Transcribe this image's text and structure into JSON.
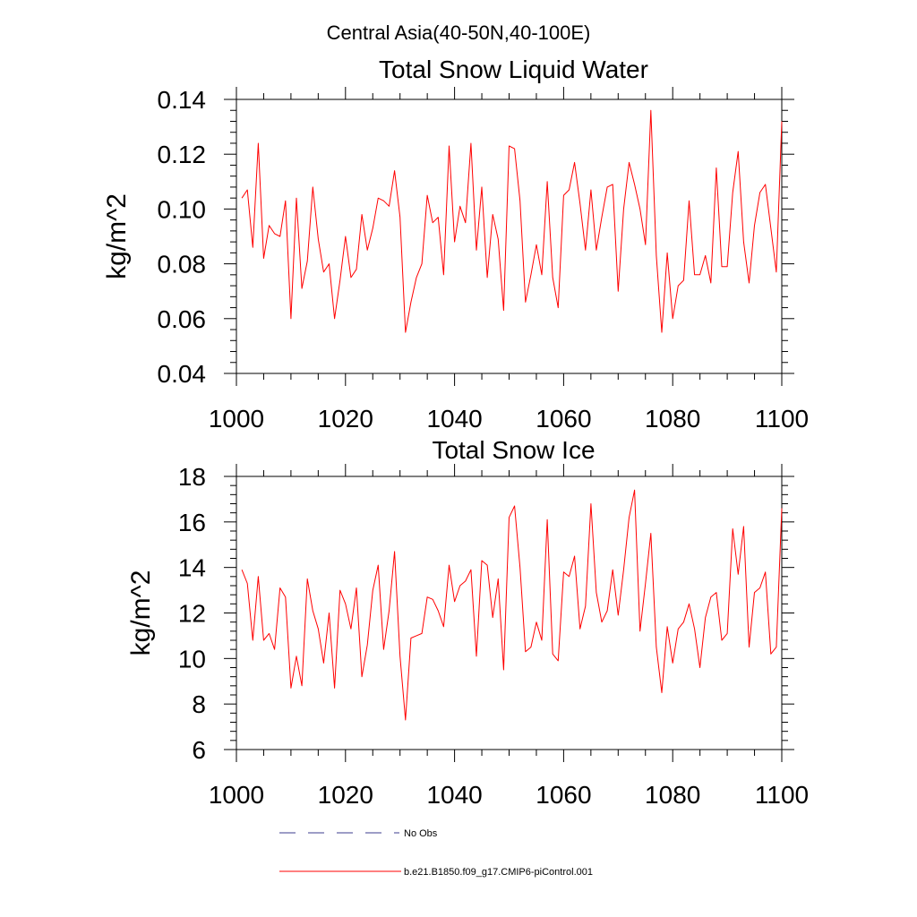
{
  "figure_title": "Central Asia(40-50N,40-100E)",
  "legend": [
    {
      "label": "No Obs",
      "style": "dashed",
      "color": "#3b3b8f"
    },
    {
      "label": "b.e21.B1850.f09_g17.CMIP6-piControl.001",
      "style": "solid",
      "color": "#ff0000"
    }
  ],
  "chart_data": [
    {
      "type": "line",
      "title": "Total Snow Liquid Water",
      "xlabel": "",
      "ylabel": "kg/m^2",
      "xlim": [
        1000,
        1100
      ],
      "ylim": [
        0.04,
        0.14
      ],
      "xticks": [
        1000,
        1020,
        1040,
        1060,
        1080,
        1100
      ],
      "xtick_labels": [
        "1000",
        "1020",
        "1040",
        "1060",
        "1080",
        "1100"
      ],
      "yticks": [
        0.04,
        0.06,
        0.08,
        0.1,
        0.12,
        0.14
      ],
      "ytick_labels": [
        "0.04",
        "0.06",
        "0.08",
        "0.10",
        "0.12",
        "0.14"
      ],
      "series": [
        {
          "name": "b.e21.B1850.f09_g17.CMIP6-piControl.001",
          "color": "#ff0000",
          "x": [
            1001,
            1002,
            1003,
            1004,
            1005,
            1006,
            1007,
            1008,
            1009,
            1010,
            1011,
            1012,
            1013,
            1014,
            1015,
            1016,
            1017,
            1018,
            1019,
            1020,
            1021,
            1022,
            1023,
            1024,
            1025,
            1026,
            1027,
            1028,
            1029,
            1030,
            1031,
            1032,
            1033,
            1034,
            1035,
            1036,
            1037,
            1038,
            1039,
            1040,
            1041,
            1042,
            1043,
            1044,
            1045,
            1046,
            1047,
            1048,
            1049,
            1050,
            1051,
            1052,
            1053,
            1054,
            1055,
            1056,
            1057,
            1058,
            1059,
            1060,
            1061,
            1062,
            1063,
            1064,
            1065,
            1066,
            1067,
            1068,
            1069,
            1070,
            1071,
            1072,
            1073,
            1074,
            1075,
            1076,
            1077,
            1078,
            1079,
            1080,
            1081,
            1082,
            1083,
            1084,
            1085,
            1086,
            1087,
            1088,
            1089,
            1090,
            1091,
            1092,
            1093,
            1094,
            1095,
            1096,
            1097,
            1098,
            1099,
            1100
          ],
          "values": [
            0.104,
            0.107,
            0.086,
            0.124,
            0.082,
            0.094,
            0.091,
            0.09,
            0.103,
            0.06,
            0.104,
            0.071,
            0.081,
            0.108,
            0.089,
            0.077,
            0.08,
            0.06,
            0.074,
            0.09,
            0.075,
            0.078,
            0.098,
            0.085,
            0.093,
            0.104,
            0.103,
            0.101,
            0.114,
            0.097,
            0.055,
            0.066,
            0.075,
            0.08,
            0.105,
            0.095,
            0.097,
            0.076,
            0.123,
            0.088,
            0.101,
            0.095,
            0.124,
            0.085,
            0.108,
            0.075,
            0.098,
            0.089,
            0.063,
            0.123,
            0.122,
            0.103,
            0.066,
            0.076,
            0.087,
            0.076,
            0.11,
            0.075,
            0.064,
            0.105,
            0.107,
            0.117,
            0.102,
            0.085,
            0.107,
            0.085,
            0.097,
            0.108,
            0.109,
            0.07,
            0.1,
            0.117,
            0.109,
            0.1,
            0.087,
            0.136,
            0.083,
            0.055,
            0.084,
            0.06,
            0.072,
            0.074,
            0.103,
            0.076,
            0.076,
            0.083,
            0.073,
            0.115,
            0.079,
            0.079,
            0.106,
            0.121,
            0.088,
            0.073,
            0.094,
            0.106,
            0.109,
            0.093,
            0.077,
            0.132
          ]
        }
      ]
    },
    {
      "type": "line",
      "title": "Total Snow Ice",
      "xlabel": "",
      "ylabel": "kg/m^2",
      "xlim": [
        1000,
        1100
      ],
      "ylim": [
        6,
        18
      ],
      "xticks": [
        1000,
        1020,
        1040,
        1060,
        1080,
        1100
      ],
      "xtick_labels": [
        "1000",
        "1020",
        "1040",
        "1060",
        "1080",
        "1100"
      ],
      "yticks": [
        6,
        8,
        10,
        12,
        14,
        16,
        18
      ],
      "ytick_labels": [
        "6",
        "8",
        "10",
        "12",
        "14",
        "16",
        "18"
      ],
      "series": [
        {
          "name": "b.e21.B1850.f09_g17.CMIP6-piControl.001",
          "color": "#ff0000",
          "x": [
            1001,
            1002,
            1003,
            1004,
            1005,
            1006,
            1007,
            1008,
            1009,
            1010,
            1011,
            1012,
            1013,
            1014,
            1015,
            1016,
            1017,
            1018,
            1019,
            1020,
            1021,
            1022,
            1023,
            1024,
            1025,
            1026,
            1027,
            1028,
            1029,
            1030,
            1031,
            1032,
            1033,
            1034,
            1035,
            1036,
            1037,
            1038,
            1039,
            1040,
            1041,
            1042,
            1043,
            1044,
            1045,
            1046,
            1047,
            1048,
            1049,
            1050,
            1051,
            1052,
            1053,
            1054,
            1055,
            1056,
            1057,
            1058,
            1059,
            1060,
            1061,
            1062,
            1063,
            1064,
            1065,
            1066,
            1067,
            1068,
            1069,
            1070,
            1071,
            1072,
            1073,
            1074,
            1075,
            1076,
            1077,
            1078,
            1079,
            1080,
            1081,
            1082,
            1083,
            1084,
            1085,
            1086,
            1087,
            1088,
            1089,
            1090,
            1091,
            1092,
            1093,
            1094,
            1095,
            1096,
            1097,
            1098,
            1099,
            1100
          ],
          "values": [
            13.9,
            13.3,
            10.8,
            13.6,
            10.8,
            11.1,
            10.4,
            13.1,
            12.7,
            8.7,
            10.1,
            8.8,
            13.5,
            12.1,
            11.3,
            9.8,
            12.0,
            8.7,
            13.0,
            12.4,
            11.3,
            13.1,
            9.2,
            10.6,
            13.0,
            14.1,
            10.4,
            12.1,
            14.7,
            10.1,
            7.3,
            10.9,
            11.0,
            11.1,
            12.7,
            12.6,
            12.1,
            11.4,
            14.1,
            12.5,
            13.2,
            13.4,
            13.9,
            10.1,
            14.3,
            14.1,
            11.8,
            13.5,
            9.5,
            16.2,
            16.7,
            14.0,
            10.3,
            10.5,
            11.6,
            10.8,
            16.1,
            10.2,
            9.9,
            13.8,
            13.6,
            14.5,
            11.3,
            12.3,
            16.8,
            12.9,
            11.6,
            12.1,
            13.9,
            11.9,
            13.9,
            16.2,
            17.4,
            11.2,
            13.3,
            15.5,
            10.5,
            8.5,
            11.4,
            9.8,
            11.3,
            11.6,
            12.4,
            11.3,
            9.6,
            11.8,
            12.7,
            12.9,
            10.8,
            11.1,
            15.7,
            13.7,
            15.8,
            10.5,
            12.9,
            13.1,
            13.8,
            10.2,
            10.5,
            16.6
          ]
        }
      ]
    }
  ]
}
